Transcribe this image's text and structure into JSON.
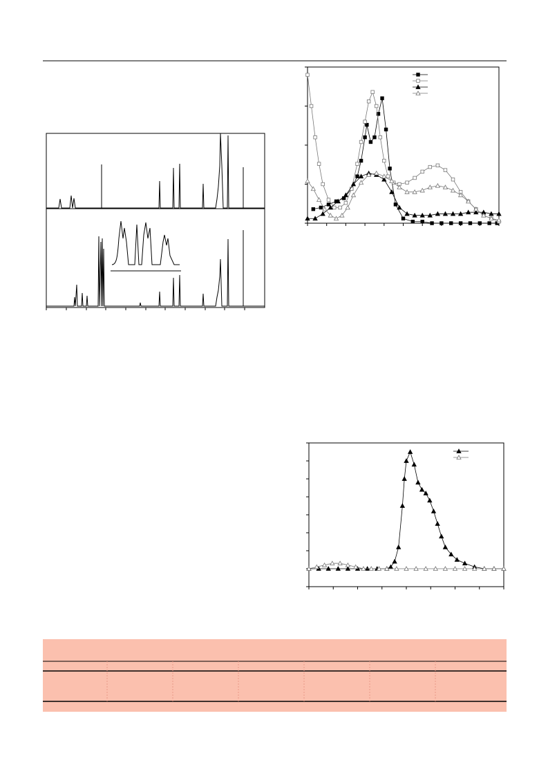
{
  "chart_data": [
    {
      "type": "line",
      "xlim": [
        0,
        100
      ],
      "ylim": [
        0,
        100
      ],
      "series": [
        {
          "color": "#000000",
          "marker": "square-filled",
          "x": [
            3,
            7,
            11,
            15,
            19,
            23,
            26,
            28,
            30,
            31,
            33,
            35,
            37,
            39,
            41,
            43,
            46,
            50,
            55,
            60,
            65,
            70,
            75,
            80,
            85,
            90,
            95,
            99
          ],
          "values": [
            9,
            10,
            12,
            14,
            16,
            22,
            30,
            40,
            55,
            63,
            52,
            55,
            70,
            80,
            60,
            35,
            12,
            3,
            1,
            1,
            0,
            0,
            0,
            0,
            0,
            0,
            0,
            0
          ]
        },
        {
          "color": "#777777",
          "marker": "square-open",
          "x": [
            0,
            2,
            4,
            6,
            8,
            11,
            14,
            17,
            20,
            23,
            26,
            28,
            30,
            32,
            34,
            36,
            38,
            40,
            42,
            45,
            48,
            52,
            56,
            60,
            64,
            68,
            72,
            76,
            80,
            84,
            88,
            92,
            96,
            100
          ],
          "values": [
            95,
            75,
            55,
            38,
            25,
            15,
            10,
            10,
            13,
            22,
            38,
            52,
            65,
            78,
            84,
            75,
            55,
            40,
            30,
            26,
            25,
            26,
            29,
            33,
            36,
            37,
            34,
            28,
            20,
            14,
            9,
            5,
            3,
            1
          ]
        },
        {
          "color": "#000000",
          "marker": "triangle-filled",
          "x": [
            0,
            4,
            8,
            12,
            16,
            20,
            24,
            28,
            32,
            36,
            40,
            44,
            48,
            52,
            56,
            60,
            64,
            68,
            72,
            76,
            80,
            84,
            88,
            92,
            96,
            100
          ],
          "values": [
            3,
            3,
            6,
            10,
            14,
            18,
            25,
            30,
            32,
            31,
            28,
            20,
            10,
            6,
            5,
            5,
            5,
            6,
            6,
            6,
            6,
            7,
            7,
            7,
            6,
            6
          ]
        },
        {
          "color": "#777777",
          "marker": "triangle-open",
          "x": [
            0,
            3,
            6,
            9,
            12,
            15,
            18,
            21,
            24,
            28,
            32,
            36,
            40,
            44,
            48,
            52,
            56,
            60,
            64,
            68,
            72,
            76,
            80,
            84,
            88,
            92,
            96,
            100
          ],
          "values": [
            27,
            22,
            15,
            9,
            5,
            3,
            5,
            10,
            18,
            26,
            31,
            32,
            30,
            27,
            23,
            20,
            20,
            21,
            23,
            24,
            23,
            21,
            18,
            14,
            9,
            5,
            3,
            2
          ]
        }
      ]
    },
    {
      "type": "line",
      "xlim": [
        0,
        100
      ],
      "ylim": [
        -10,
        70
      ],
      "series": [
        {
          "color": "#000000",
          "marker": "triangle-filled",
          "x": [
            0,
            5,
            10,
            15,
            20,
            25,
            30,
            35,
            40,
            42,
            44,
            46,
            48,
            49,
            50,
            52,
            54,
            56,
            58,
            60,
            62,
            64,
            66,
            68,
            70,
            73,
            76,
            80,
            85,
            90,
            95,
            100
          ],
          "values": [
            0,
            0,
            0,
            0,
            0,
            0,
            0,
            0,
            0,
            1,
            4,
            12,
            35,
            50,
            60,
            65,
            58,
            48,
            44,
            42,
            38,
            32,
            25,
            18,
            12,
            8,
            5,
            3,
            1,
            0,
            0,
            0
          ]
        },
        {
          "color": "#777777",
          "marker": "triangle-open",
          "x": [
            0,
            4,
            8,
            12,
            16,
            20,
            24,
            28,
            32,
            36,
            40,
            45,
            50,
            55,
            60,
            65,
            70,
            75,
            80,
            85,
            90,
            95,
            100
          ],
          "values": [
            0,
            1,
            2,
            3,
            3,
            2,
            1,
            0,
            0,
            0,
            0,
            0,
            0,
            0,
            0,
            0,
            0,
            0,
            0,
            0,
            0,
            0,
            0
          ]
        }
      ]
    }
  ]
}
